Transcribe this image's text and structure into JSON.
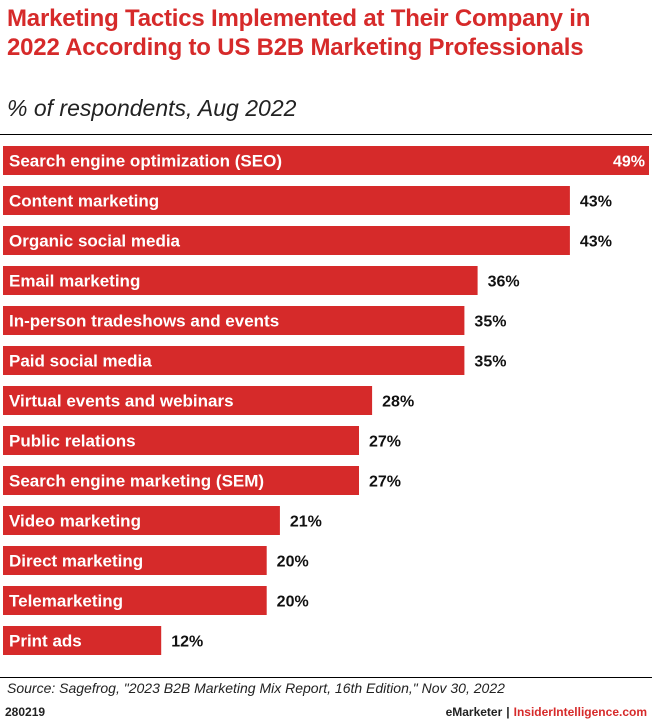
{
  "header": {
    "title": "Marketing Tactics Implemented at Their Company in 2022 According to US B2B Marketing Professionals",
    "subtitle": "% of respondents, Aug 2022"
  },
  "chart_data": {
    "type": "bar",
    "orientation": "horizontal",
    "categories": [
      "Search engine optimization (SEO)",
      "Content marketing",
      "Organic social media",
      "Email marketing",
      "In-person tradeshows and events",
      "Paid social media",
      "Virtual events and webinars",
      "Public relations",
      "Search engine marketing (SEM)",
      "Video marketing",
      "Direct marketing",
      "Telemarketing",
      "Print ads"
    ],
    "values": [
      49,
      43,
      43,
      36,
      35,
      35,
      28,
      27,
      27,
      21,
      20,
      20,
      12
    ],
    "value_labels": [
      "49%",
      "43%",
      "43%",
      "36%",
      "35%",
      "35%",
      "28%",
      "27%",
      "27%",
      "21%",
      "20%",
      "20%",
      "12%"
    ],
    "unit": "%",
    "xlim": [
      0,
      49
    ],
    "bar_color": "#d62a2a",
    "title": "Marketing Tactics Implemented at Their Company in 2022 According to US B2B Marketing Professionals",
    "xlabel": "",
    "ylabel": ""
  },
  "footer": {
    "source": "Source: Sagefrog, \"2023 B2B Marketing Mix Report, 16th Edition,\" Nov 30, 2022",
    "chart_id": "280219",
    "brand": "eMarketer",
    "separator": "|",
    "site": "InsiderIntelligence.com"
  },
  "colors": {
    "accent": "#d62a2a",
    "text": "#222222"
  }
}
